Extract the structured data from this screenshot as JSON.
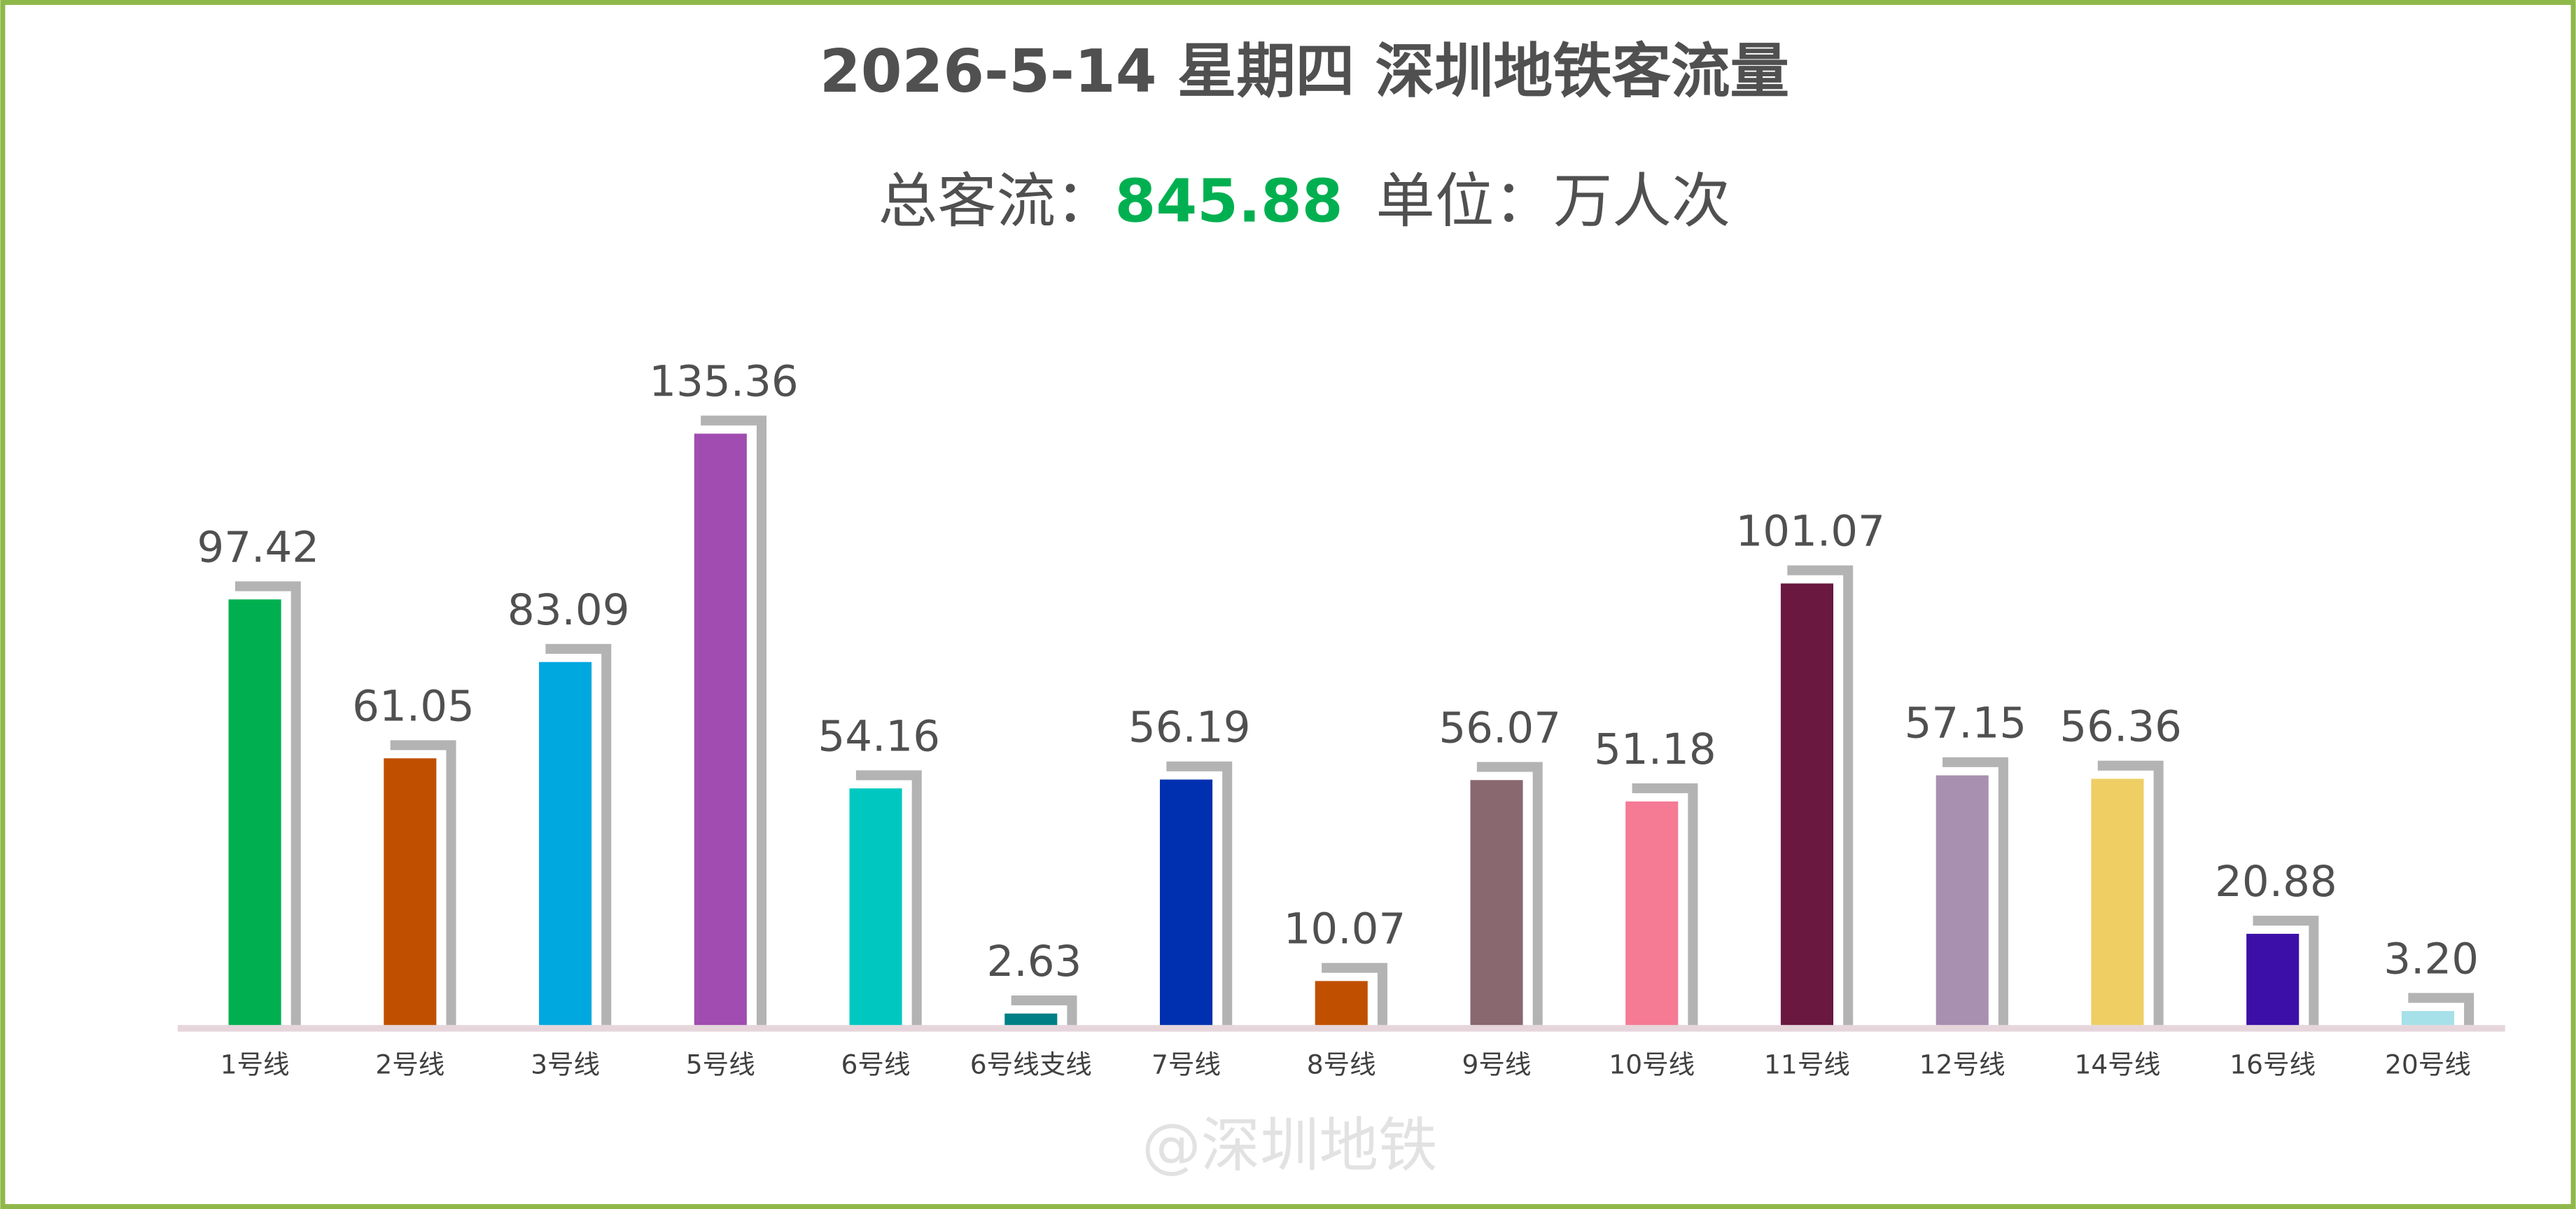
{
  "chart_data": {
    "type": "bar",
    "title": "2026-5-14 星期四  深圳地铁客流量",
    "total_label": "总客流：",
    "total": "845.88",
    "unit_label": "单位：万人次",
    "watermark": "@深圳地铁",
    "categories": [
      "1号线",
      "2号线",
      "3号线",
      "5号线",
      "6号线",
      "6号线支线",
      "7号线",
      "8号线",
      "9号线",
      "10号线",
      "11号线",
      "12号线",
      "14号线",
      "16号线",
      "20号线"
    ],
    "values": [
      97.42,
      61.05,
      83.09,
      135.36,
      54.16,
      2.63,
      56.19,
      10.07,
      56.07,
      51.18,
      101.07,
      57.15,
      56.36,
      20.88,
      3.2
    ],
    "value_labels": [
      "97.42",
      "61.05",
      "83.09",
      "135.36",
      "54.16",
      "2.63",
      "56.19",
      "10.07",
      "56.07",
      "51.18",
      "101.07",
      "57.15",
      "56.36",
      "20.88",
      "3.20"
    ],
    "colors": [
      "#00b050",
      "#c05000",
      "#00a8e0",
      "#a04cb0",
      "#00c8c0",
      "#007f86",
      "#0030b0",
      "#c05000",
      "#8a6870",
      "#f57a94",
      "#6a1840",
      "#a890b0",
      "#efce64",
      "#3c10a8",
      "#a6e0e8"
    ]
  }
}
